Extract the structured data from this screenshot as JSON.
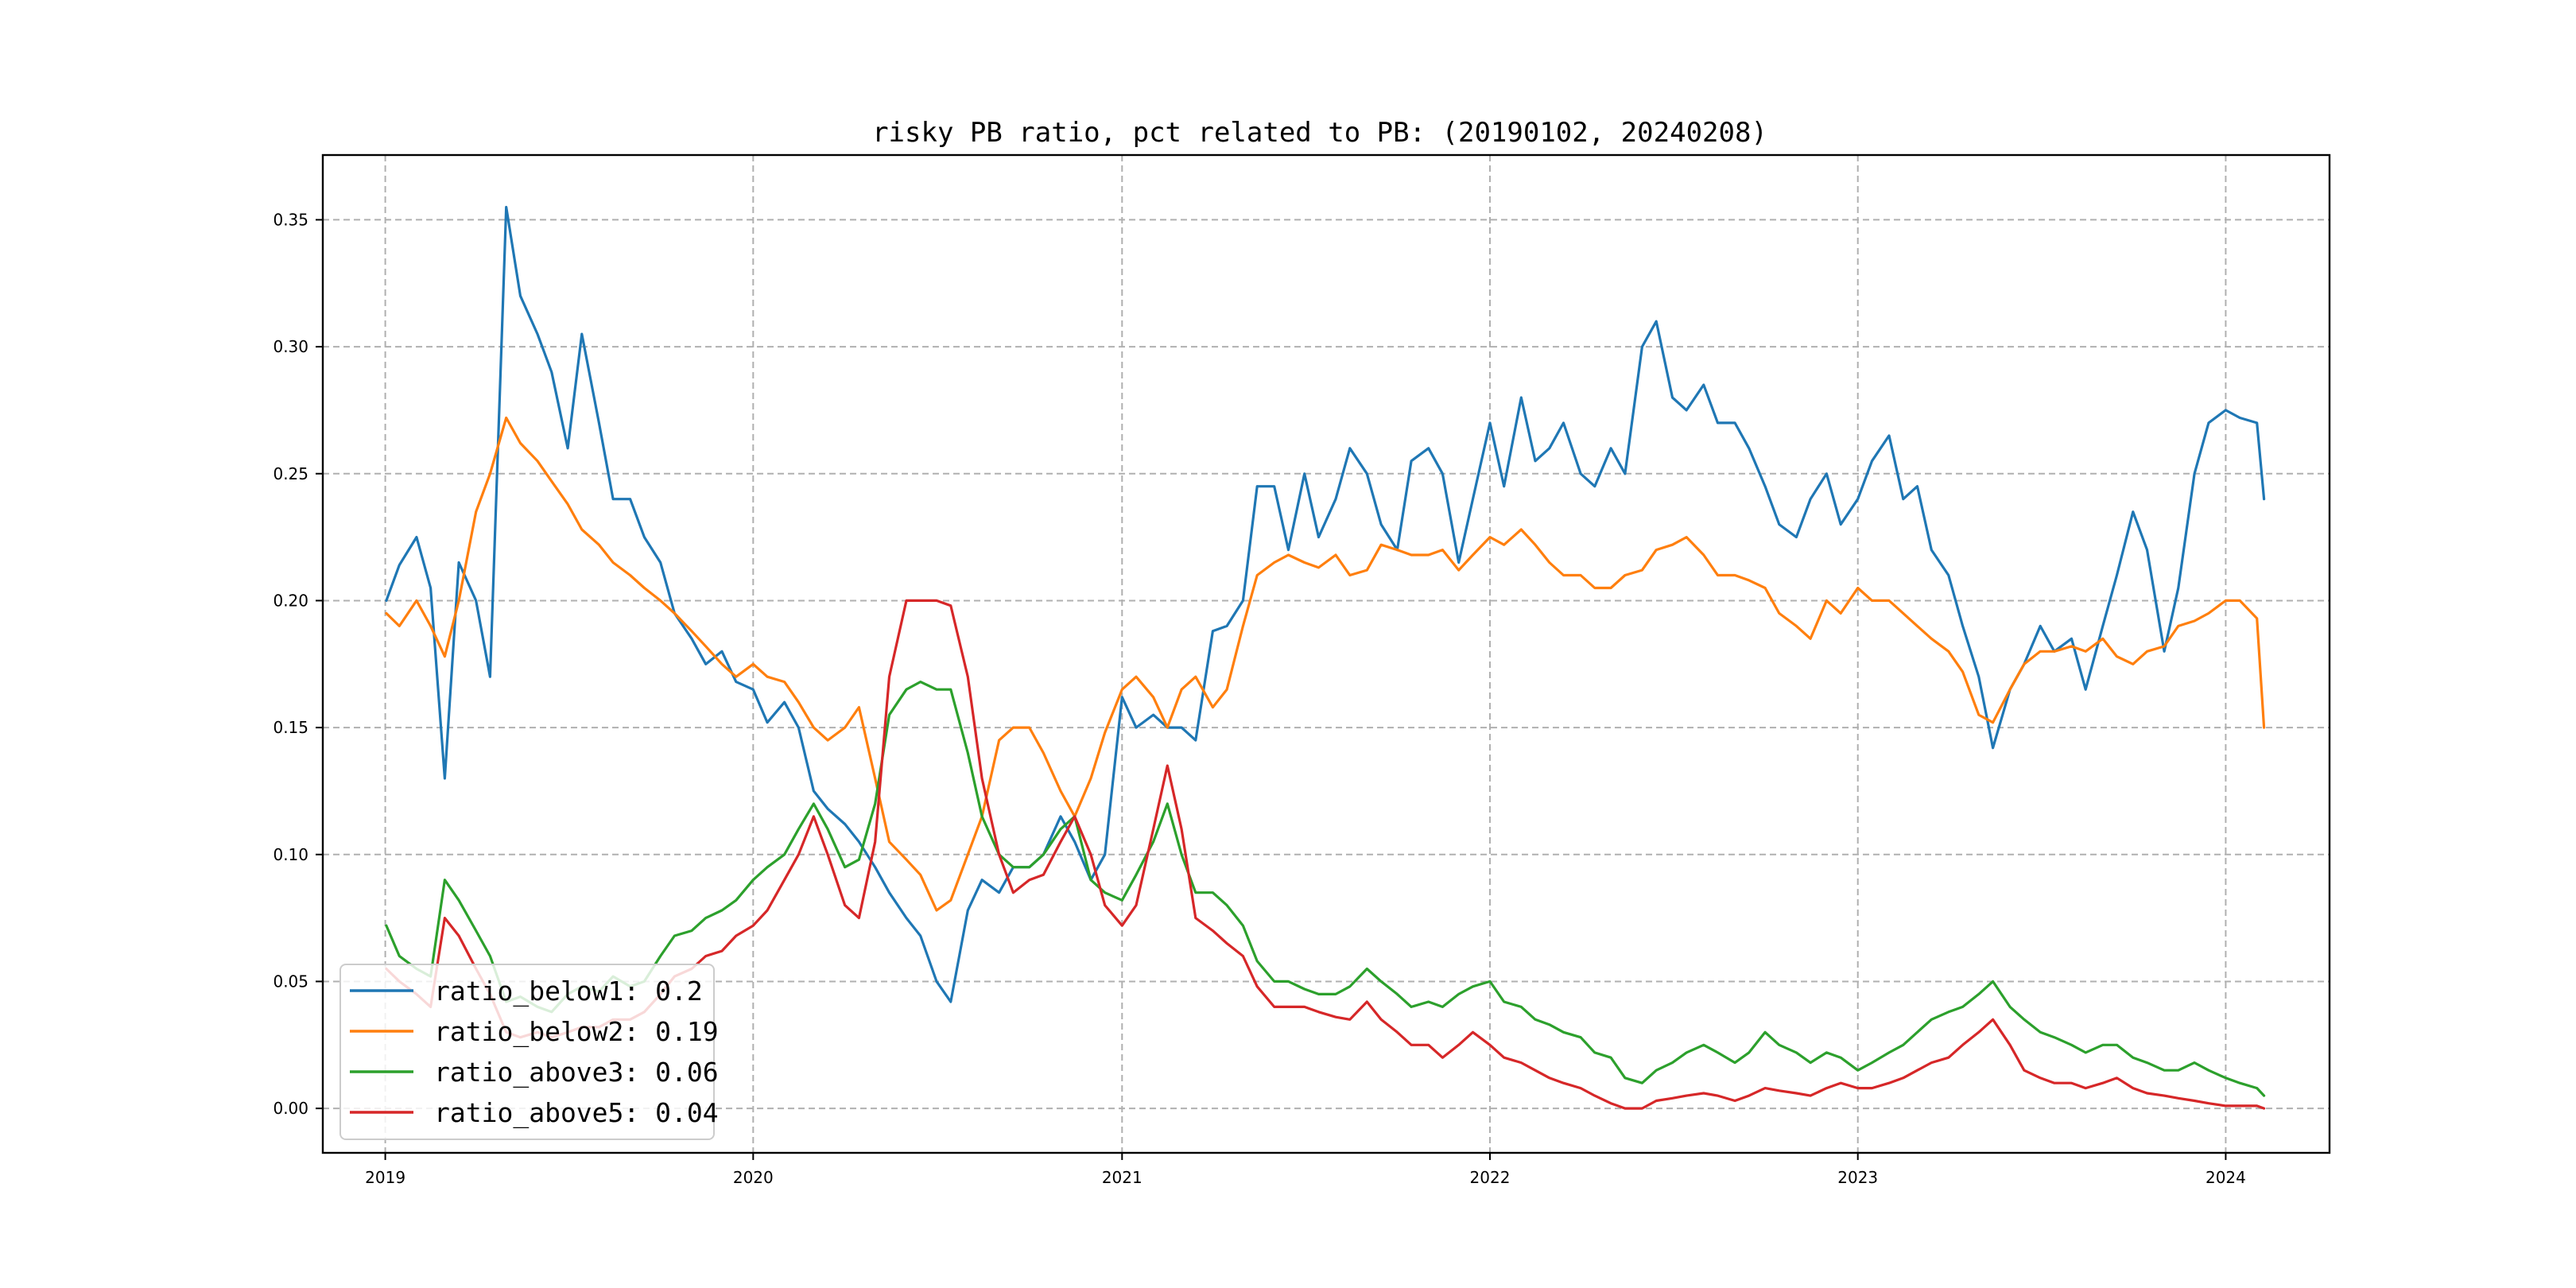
{
  "chart_data": {
    "type": "line",
    "title": "risky PB ratio, pct related to PB: (20190102, 20240208)",
    "xlabel": "",
    "ylabel": "",
    "xlim": [
      "2018-10-31",
      "2024-04-13"
    ],
    "ylim": [
      -0.0175,
      0.3755
    ],
    "x_ticks": [
      "2019-01-01",
      "2020-01-01",
      "2021-01-01",
      "2022-01-01",
      "2023-01-01",
      "2024-01-01"
    ],
    "x_tick_labels": [
      "2019",
      "2020",
      "2021",
      "2022",
      "2023",
      "2024"
    ],
    "y_ticks": [
      0.0,
      0.05,
      0.1,
      0.15,
      0.2,
      0.25,
      0.3,
      0.35
    ],
    "y_tick_labels": [
      "0.00",
      "0.05",
      "0.10",
      "0.15",
      "0.20",
      "0.25",
      "0.30",
      "0.35"
    ],
    "grid": true,
    "legend_position": "lower-left",
    "x": [
      "2019-01-02",
      "2019-01-15",
      "2019-02-01",
      "2019-02-15",
      "2019-03-01",
      "2019-03-15",
      "2019-04-01",
      "2019-04-15",
      "2019-05-01",
      "2019-05-15",
      "2019-06-01",
      "2019-06-15",
      "2019-07-01",
      "2019-07-15",
      "2019-08-01",
      "2019-08-15",
      "2019-09-01",
      "2019-09-15",
      "2019-10-01",
      "2019-10-15",
      "2019-11-01",
      "2019-11-15",
      "2019-12-01",
      "2019-12-15",
      "2020-01-01",
      "2020-01-15",
      "2020-02-01",
      "2020-02-15",
      "2020-03-01",
      "2020-03-15",
      "2020-04-01",
      "2020-04-15",
      "2020-05-01",
      "2020-05-15",
      "2020-06-01",
      "2020-06-15",
      "2020-07-01",
      "2020-07-15",
      "2020-08-01",
      "2020-08-15",
      "2020-09-01",
      "2020-09-15",
      "2020-10-01",
      "2020-10-15",
      "2020-11-01",
      "2020-11-15",
      "2020-12-01",
      "2020-12-15",
      "2021-01-01",
      "2021-01-15",
      "2021-02-01",
      "2021-02-15",
      "2021-03-01",
      "2021-03-15",
      "2021-04-01",
      "2021-04-15",
      "2021-05-01",
      "2021-05-15",
      "2021-06-01",
      "2021-06-15",
      "2021-07-01",
      "2021-07-15",
      "2021-08-01",
      "2021-08-15",
      "2021-09-01",
      "2021-09-15",
      "2021-10-01",
      "2021-10-15",
      "2021-11-01",
      "2021-11-15",
      "2021-12-01",
      "2021-12-15",
      "2022-01-01",
      "2022-01-15",
      "2022-02-01",
      "2022-02-15",
      "2022-03-01",
      "2022-03-15",
      "2022-04-01",
      "2022-04-15",
      "2022-05-01",
      "2022-05-15",
      "2022-06-01",
      "2022-06-15",
      "2022-07-01",
      "2022-07-15",
      "2022-08-01",
      "2022-08-15",
      "2022-09-01",
      "2022-09-15",
      "2022-10-01",
      "2022-10-15",
      "2022-11-01",
      "2022-11-15",
      "2022-12-01",
      "2022-12-15",
      "2023-01-01",
      "2023-01-15",
      "2023-02-01",
      "2023-02-15",
      "2023-03-01",
      "2023-03-15",
      "2023-04-01",
      "2023-04-15",
      "2023-05-01",
      "2023-05-15",
      "2023-06-01",
      "2023-06-15",
      "2023-07-01",
      "2023-07-15",
      "2023-08-01",
      "2023-08-15",
      "2023-09-01",
      "2023-09-15",
      "2023-10-01",
      "2023-10-15",
      "2023-11-01",
      "2023-11-15",
      "2023-12-01",
      "2023-12-15",
      "2024-01-01",
      "2024-01-15",
      "2024-02-01",
      "2024-02-08"
    ],
    "series": [
      {
        "name": "ratio_below1: 0.2",
        "color": "#1f77b4",
        "values": [
          0.2,
          0.214,
          0.225,
          0.205,
          0.13,
          0.215,
          0.2,
          0.17,
          0.355,
          0.32,
          0.305,
          0.29,
          0.26,
          0.305,
          0.27,
          0.24,
          0.24,
          0.225,
          0.215,
          0.195,
          0.185,
          0.175,
          0.18,
          0.168,
          0.165,
          0.152,
          0.16,
          0.15,
          0.125,
          0.118,
          0.112,
          0.105,
          0.095,
          0.085,
          0.075,
          0.068,
          0.05,
          0.042,
          0.078,
          0.09,
          0.085,
          0.095,
          0.095,
          0.1,
          0.115,
          0.105,
          0.09,
          0.1,
          0.162,
          0.15,
          0.155,
          0.15,
          0.15,
          0.145,
          0.188,
          0.19,
          0.2,
          0.245,
          0.245,
          0.22,
          0.25,
          0.225,
          0.24,
          0.26,
          0.25,
          0.23,
          0.22,
          0.255,
          0.26,
          0.25,
          0.215,
          0.24,
          0.27,
          0.245,
          0.28,
          0.255,
          0.26,
          0.27,
          0.25,
          0.245,
          0.26,
          0.25,
          0.3,
          0.31,
          0.28,
          0.275,
          0.285,
          0.27,
          0.27,
          0.26,
          0.245,
          0.23,
          0.225,
          0.24,
          0.25,
          0.23,
          0.24,
          0.255,
          0.265,
          0.24,
          0.245,
          0.22,
          0.21,
          0.19,
          0.17,
          0.142,
          0.165,
          0.175,
          0.19,
          0.18,
          0.185,
          0.165,
          0.19,
          0.21,
          0.235,
          0.22,
          0.18,
          0.205,
          0.25,
          0.27,
          0.275,
          0.272,
          0.27,
          0.24
        ]
      },
      {
        "name": "ratio_below2: 0.19",
        "color": "#ff7f0e",
        "values": [
          0.195,
          0.19,
          0.2,
          0.19,
          0.178,
          0.2,
          0.235,
          0.25,
          0.272,
          0.262,
          0.255,
          0.247,
          0.238,
          0.228,
          0.222,
          0.215,
          0.21,
          0.205,
          0.2,
          0.195,
          0.188,
          0.182,
          0.175,
          0.17,
          0.175,
          0.17,
          0.168,
          0.16,
          0.15,
          0.145,
          0.15,
          0.158,
          0.13,
          0.105,
          0.098,
          0.092,
          0.078,
          0.082,
          0.1,
          0.115,
          0.145,
          0.15,
          0.15,
          0.14,
          0.125,
          0.115,
          0.13,
          0.148,
          0.165,
          0.17,
          0.162,
          0.15,
          0.165,
          0.17,
          0.158,
          0.165,
          0.19,
          0.21,
          0.215,
          0.218,
          0.215,
          0.213,
          0.218,
          0.21,
          0.212,
          0.222,
          0.22,
          0.218,
          0.218,
          0.22,
          0.212,
          0.218,
          0.225,
          0.222,
          0.228,
          0.222,
          0.215,
          0.21,
          0.21,
          0.205,
          0.205,
          0.21,
          0.212,
          0.22,
          0.222,
          0.225,
          0.218,
          0.21,
          0.21,
          0.208,
          0.205,
          0.195,
          0.19,
          0.185,
          0.2,
          0.195,
          0.205,
          0.2,
          0.2,
          0.195,
          0.19,
          0.185,
          0.18,
          0.172,
          0.155,
          0.152,
          0.165,
          0.175,
          0.18,
          0.18,
          0.182,
          0.18,
          0.185,
          0.178,
          0.175,
          0.18,
          0.182,
          0.19,
          0.192,
          0.195,
          0.2,
          0.2,
          0.193,
          0.15
        ]
      },
      {
        "name": "ratio_above3: 0.06",
        "color": "#2ca02c",
        "values": [
          0.072,
          0.06,
          0.055,
          0.052,
          0.09,
          0.082,
          0.07,
          0.06,
          0.042,
          0.044,
          0.04,
          0.038,
          0.045,
          0.048,
          0.046,
          0.052,
          0.048,
          0.05,
          0.06,
          0.068,
          0.07,
          0.075,
          0.078,
          0.082,
          0.09,
          0.095,
          0.1,
          0.11,
          0.12,
          0.11,
          0.095,
          0.098,
          0.12,
          0.155,
          0.165,
          0.168,
          0.165,
          0.165,
          0.14,
          0.115,
          0.1,
          0.095,
          0.095,
          0.1,
          0.11,
          0.115,
          0.09,
          0.085,
          0.082,
          0.092,
          0.105,
          0.12,
          0.1,
          0.085,
          0.085,
          0.08,
          0.072,
          0.058,
          0.05,
          0.05,
          0.047,
          0.045,
          0.045,
          0.048,
          0.055,
          0.05,
          0.045,
          0.04,
          0.042,
          0.04,
          0.045,
          0.048,
          0.05,
          0.042,
          0.04,
          0.035,
          0.033,
          0.03,
          0.028,
          0.022,
          0.02,
          0.012,
          0.01,
          0.015,
          0.018,
          0.022,
          0.025,
          0.022,
          0.018,
          0.022,
          0.03,
          0.025,
          0.022,
          0.018,
          0.022,
          0.02,
          0.015,
          0.018,
          0.022,
          0.025,
          0.03,
          0.035,
          0.038,
          0.04,
          0.045,
          0.05,
          0.04,
          0.035,
          0.03,
          0.028,
          0.025,
          0.022,
          0.025,
          0.025,
          0.02,
          0.018,
          0.015,
          0.015,
          0.018,
          0.015,
          0.012,
          0.01,
          0.008,
          0.005
        ]
      },
      {
        "name": "ratio_above5: 0.04",
        "color": "#d62728",
        "values": [
          0.055,
          0.05,
          0.045,
          0.04,
          0.075,
          0.068,
          0.055,
          0.045,
          0.03,
          0.028,
          0.03,
          0.028,
          0.03,
          0.032,
          0.032,
          0.035,
          0.035,
          0.038,
          0.045,
          0.052,
          0.055,
          0.06,
          0.062,
          0.068,
          0.072,
          0.078,
          0.09,
          0.1,
          0.115,
          0.1,
          0.08,
          0.075,
          0.105,
          0.17,
          0.2,
          0.2,
          0.2,
          0.198,
          0.17,
          0.13,
          0.1,
          0.085,
          0.09,
          0.092,
          0.105,
          0.115,
          0.1,
          0.08,
          0.072,
          0.08,
          0.11,
          0.135,
          0.11,
          0.075,
          0.07,
          0.065,
          0.06,
          0.048,
          0.04,
          0.04,
          0.04,
          0.038,
          0.036,
          0.035,
          0.042,
          0.035,
          0.03,
          0.025,
          0.025,
          0.02,
          0.025,
          0.03,
          0.025,
          0.02,
          0.018,
          0.015,
          0.012,
          0.01,
          0.008,
          0.005,
          0.002,
          0.0,
          0.0,
          0.003,
          0.004,
          0.005,
          0.006,
          0.005,
          0.003,
          0.005,
          0.008,
          0.007,
          0.006,
          0.005,
          0.008,
          0.01,
          0.008,
          0.008,
          0.01,
          0.012,
          0.015,
          0.018,
          0.02,
          0.025,
          0.03,
          0.035,
          0.025,
          0.015,
          0.012,
          0.01,
          0.01,
          0.008,
          0.01,
          0.012,
          0.008,
          0.006,
          0.005,
          0.004,
          0.003,
          0.002,
          0.001,
          0.001,
          0.001,
          0.0
        ]
      }
    ]
  }
}
